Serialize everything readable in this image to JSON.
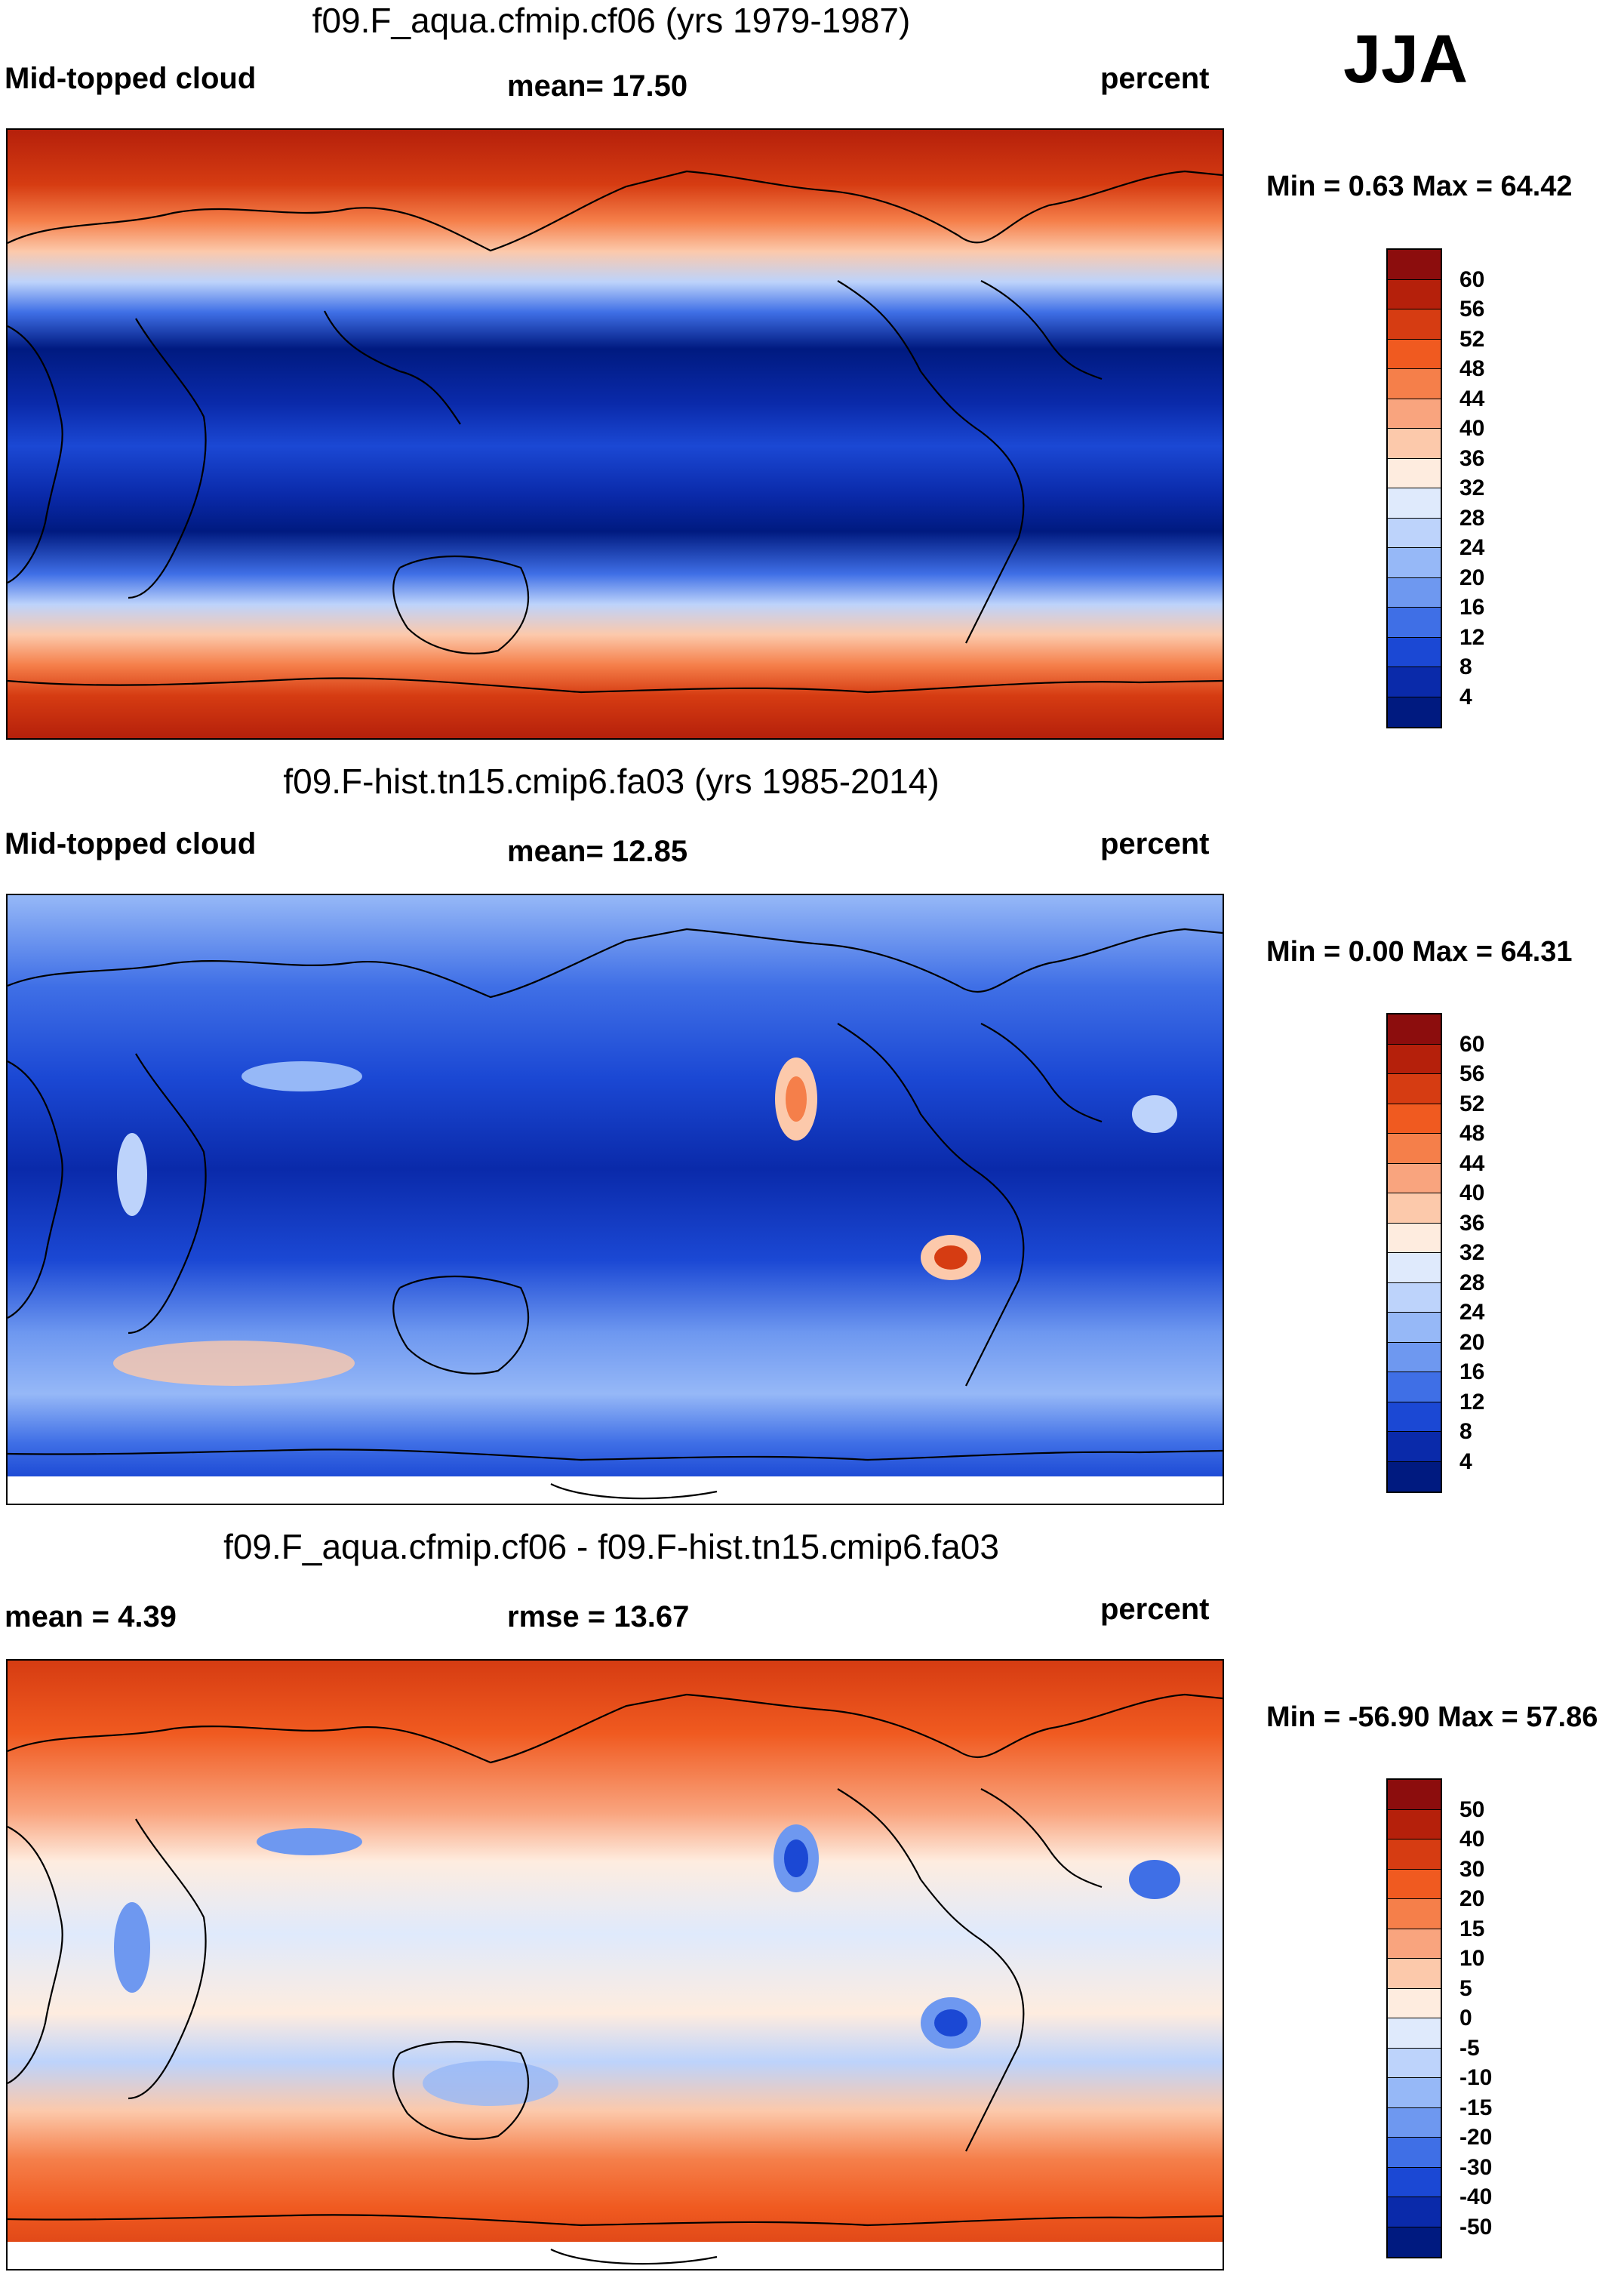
{
  "season": "JJA",
  "panels": [
    {
      "title": "f09.F_aqua.cfmip.cf06 (yrs 1979-1987)",
      "left_label": "Mid-topped cloud",
      "center_label": "mean=  17.50",
      "right_label": "percent",
      "minmax": "Min =   0.63 Max =  64.42",
      "levels": [
        "60",
        "56",
        "52",
        "48",
        "44",
        "40",
        "36",
        "32",
        "28",
        "24",
        "20",
        "16",
        "12",
        "8",
        "4"
      ],
      "colors": [
        "#8c0d0d",
        "#b5200b",
        "#d63c12",
        "#f05a20",
        "#f57f4a",
        "#f9a47e",
        "#fcc9ab",
        "#feecdf",
        "#dfeafc",
        "#bdd3fb",
        "#96b8f7",
        "#6e98f0",
        "#3f6fe6",
        "#1b48d4",
        "#0a2aaa",
        "#001a80"
      ]
    },
    {
      "title": "f09.F-hist.tn15.cmip6.fa03 (yrs 1985-2014)",
      "left_label": "Mid-topped cloud",
      "center_label": "mean=  12.85",
      "right_label": "percent",
      "minmax": "Min =   0.00 Max =  64.31",
      "levels": [
        "60",
        "56",
        "52",
        "48",
        "44",
        "40",
        "36",
        "32",
        "28",
        "24",
        "20",
        "16",
        "12",
        "8",
        "4"
      ],
      "colors": [
        "#8c0d0d",
        "#b5200b",
        "#d63c12",
        "#f05a20",
        "#f57f4a",
        "#f9a47e",
        "#fcc9ab",
        "#feecdf",
        "#dfeafc",
        "#bdd3fb",
        "#96b8f7",
        "#6e98f0",
        "#3f6fe6",
        "#1b48d4",
        "#0a2aaa",
        "#001a80"
      ]
    },
    {
      "title": "f09.F_aqua.cfmip.cf06 - f09.F-hist.tn15.cmip6.fa03",
      "left_label": "mean =    4.39",
      "center_label": "rmse =  13.67",
      "right_label": "percent",
      "minmax": "Min = -56.90 Max =  57.86",
      "levels": [
        "50",
        "40",
        "30",
        "20",
        "15",
        "10",
        "5",
        "0",
        "-5",
        "-10",
        "-15",
        "-20",
        "-30",
        "-40",
        "-50"
      ],
      "colors": [
        "#8c0d0d",
        "#b5200b",
        "#d63c12",
        "#f05a20",
        "#f57f4a",
        "#f9a47e",
        "#fcc9ab",
        "#feecdf",
        "#dfeafc",
        "#bdd3fb",
        "#96b8f7",
        "#6e98f0",
        "#3f6fe6",
        "#1b48d4",
        "#0a2aaa",
        "#001a80"
      ]
    }
  ]
}
